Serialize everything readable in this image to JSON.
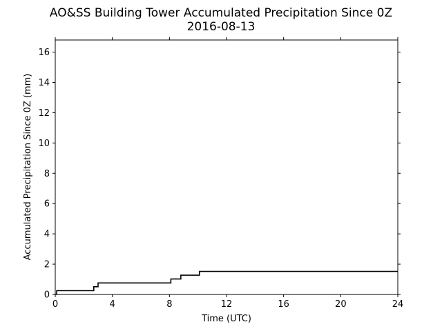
{
  "chart_data": {
    "type": "line",
    "title": "AO&SS Building Tower Accumulated Precipitation Since 0Z",
    "subtitle": "2016-08-13",
    "xlabel": "Time (UTC)",
    "ylabel": "Accumulated Precipitation Since 0Z (mm)",
    "xlim": [
      0,
      24
    ],
    "ylim": [
      0,
      16.8
    ],
    "xticks": [
      0,
      4,
      8,
      12,
      16,
      20,
      24
    ],
    "yticks": [
      0,
      2,
      4,
      6,
      8,
      10,
      12,
      14,
      16
    ],
    "grid": false,
    "line_color": "#000000",
    "step": true,
    "series": [
      {
        "x": [
          0.0,
          0.1,
          2.7,
          3.0,
          8.1,
          8.8,
          10.1,
          24.0
        ],
        "values": [
          0.0,
          0.25,
          0.51,
          0.76,
          1.02,
          1.27,
          1.52,
          1.52
        ]
      }
    ]
  }
}
